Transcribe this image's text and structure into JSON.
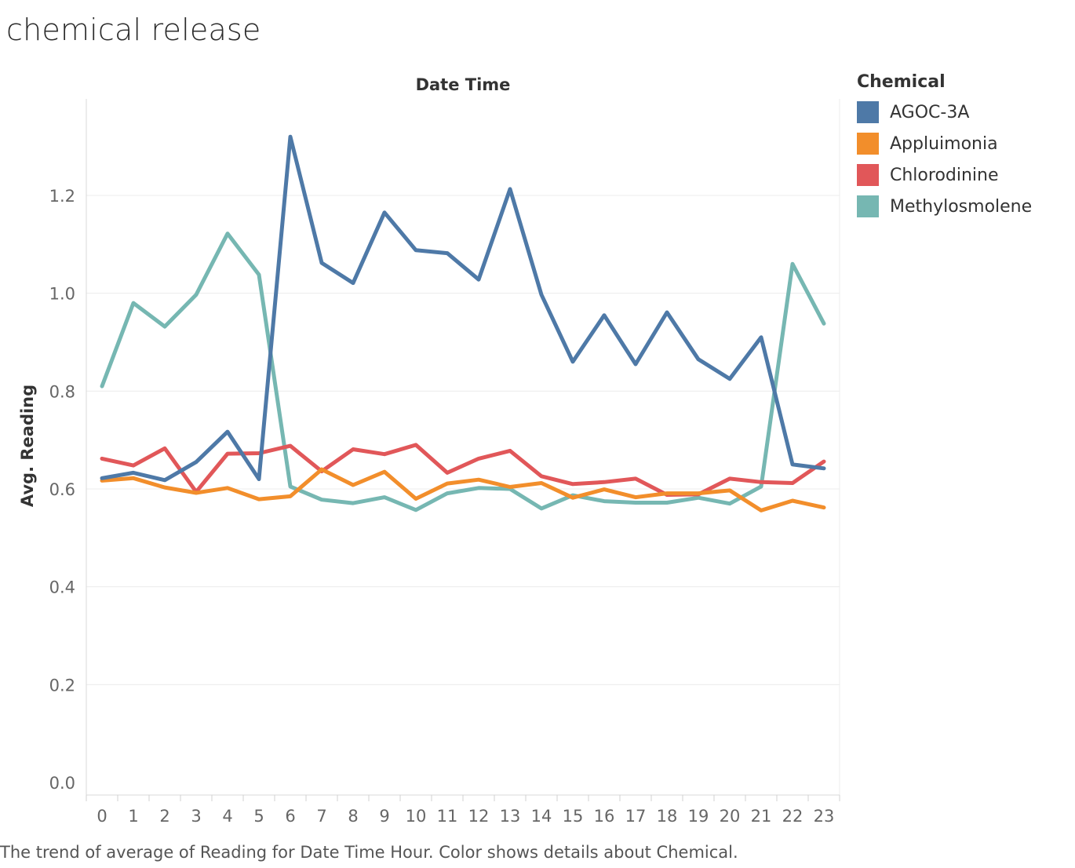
{
  "title": "chemical release",
  "caption": "The trend of average of Reading for Date Time Hour.  Color shows details about Chemical.",
  "chart_data": {
    "type": "line",
    "title": "chemical release",
    "xlabel": "Date Time",
    "ylabel": "Avg. Reading",
    "x": [
      0,
      1,
      2,
      3,
      4,
      5,
      6,
      7,
      8,
      9,
      10,
      11,
      12,
      13,
      14,
      15,
      16,
      17,
      18,
      19,
      20,
      21,
      22,
      23
    ],
    "ylim": [
      0,
      1.4
    ],
    "yticks": [
      0.0,
      0.2,
      0.4,
      0.6,
      0.8,
      1.0,
      1.2
    ],
    "ytick_labels": [
      "0.0",
      "0.2",
      "0.4",
      "0.6",
      "0.8",
      "1.0",
      "1.2"
    ],
    "grid": "horizontal",
    "legend_title": "Chemical",
    "legend_position": "right",
    "series": [
      {
        "name": "AGOC-3A",
        "color": "#4e79a7",
        "values": [
          0.622,
          0.633,
          0.618,
          0.655,
          0.717,
          0.62,
          1.32,
          1.062,
          1.021,
          1.165,
          1.088,
          1.082,
          1.028,
          1.213,
          0.997,
          0.86,
          0.955,
          0.855,
          0.961,
          0.865,
          0.825,
          0.91,
          0.65,
          0.642
        ]
      },
      {
        "name": "Appluimonia",
        "color": "#f28e2b",
        "values": [
          0.617,
          0.622,
          0.603,
          0.592,
          0.602,
          0.579,
          0.585,
          0.64,
          0.608,
          0.635,
          0.58,
          0.611,
          0.619,
          0.604,
          0.612,
          0.582,
          0.599,
          0.583,
          0.591,
          0.591,
          0.597,
          0.556,
          0.576,
          0.562
        ]
      },
      {
        "name": "Chlorodinine",
        "color": "#e15759",
        "values": [
          0.662,
          0.648,
          0.683,
          0.594,
          0.672,
          0.673,
          0.688,
          0.636,
          0.681,
          0.671,
          0.69,
          0.633,
          0.662,
          0.678,
          0.626,
          0.61,
          0.614,
          0.621,
          0.588,
          0.589,
          0.621,
          0.614,
          0.612,
          0.656
        ]
      },
      {
        "name": "Methylosmolene",
        "color": "#76b7b2",
        "values": [
          0.81,
          0.98,
          0.932,
          0.997,
          1.122,
          1.038,
          0.605,
          0.578,
          0.571,
          0.583,
          0.557,
          0.591,
          0.602,
          0.6,
          0.56,
          0.587,
          0.575,
          0.572,
          0.572,
          0.582,
          0.57,
          0.605,
          1.06,
          0.938
        ]
      }
    ]
  }
}
